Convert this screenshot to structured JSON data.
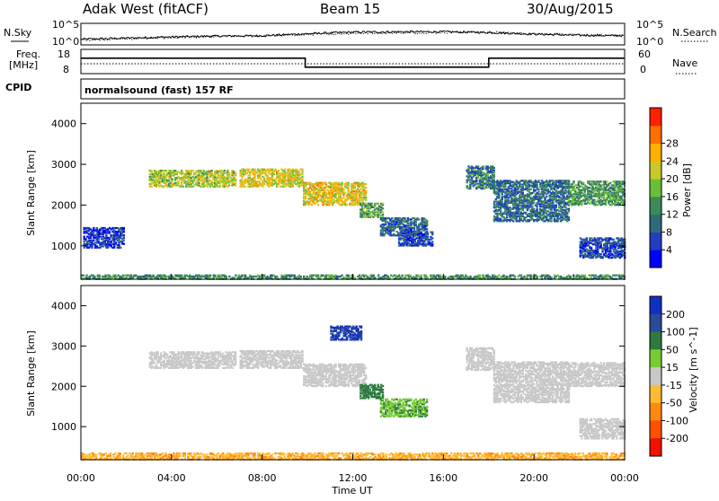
{
  "header": {
    "station": "Adak West (fitACF)",
    "beam": "Beam 15",
    "date": "30/Aug/2015"
  },
  "side_labels": {
    "nsky": "N.Sky",
    "nsky_ticks": [
      "10^5",
      "10^0"
    ],
    "freq": "Freq.",
    "freq_unit": "[MHz]",
    "freq_ticks": [
      "18",
      "8"
    ],
    "cpid": "CPID",
    "nsearch": "N.Search",
    "nsearch_ticks": [
      "10^5",
      "10^0"
    ],
    "nave": "Nave",
    "nave_ticks": [
      "60",
      "0"
    ]
  },
  "cpid_text": "normalsound (fast) 157 RF",
  "x_axis": {
    "label": "Time UT",
    "ticks": [
      "00:00",
      "04:00",
      "08:00",
      "12:00",
      "16:00",
      "20:00",
      "00:00"
    ]
  },
  "chart_data": [
    {
      "type": "line",
      "panel": "noise",
      "series": [
        {
          "name": "N.Sky",
          "x": [
            0,
            2,
            4,
            6,
            8,
            10,
            12,
            14,
            16,
            18,
            20,
            22,
            24
          ],
          "values": [
            1.2,
            1.5,
            1.8,
            2.0,
            2.1,
            2.6,
            3.0,
            3.1,
            3.1,
            2.9,
            2.5,
            2.2,
            2.1
          ]
        },
        {
          "name": "N.Search",
          "x": [
            0,
            2,
            4,
            6,
            8,
            10,
            12,
            14,
            16,
            18,
            20,
            22,
            24
          ],
          "values": [
            1.0,
            1.3,
            1.6,
            1.9,
            2.0,
            2.4,
            2.7,
            2.8,
            2.9,
            3.0,
            2.6,
            2.3,
            2.2
          ]
        }
      ],
      "ylim": [
        0,
        5
      ]
    },
    {
      "type": "line",
      "panel": "frequency-nave",
      "series": [
        {
          "name": "Freq.",
          "x": [
            0,
            9.9,
            9.9,
            18,
            18,
            24
          ],
          "values": [
            14.5,
            14.5,
            10.5,
            10.5,
            14.5,
            14.5
          ]
        },
        {
          "name": "Nave",
          "x": [
            0,
            24
          ],
          "values": [
            12,
            12
          ]
        }
      ],
      "ylim": [
        8,
        18
      ]
    },
    {
      "type": "heatmap",
      "panel": "power",
      "title": "",
      "xlabel": "",
      "ylabel": "Slant Range [km]",
      "xlim": [
        0,
        24
      ],
      "ylim": [
        180,
        4500
      ],
      "yticks": [
        1000,
        2000,
        3000,
        4000
      ],
      "colorbar": {
        "label": "Power [dB]",
        "ticks": [
          "4",
          "8",
          "12",
          "16",
          "20",
          "24",
          "28"
        ],
        "colors": [
          "#0000ff",
          "#1f3fbf",
          "#2e6a7a",
          "#3a8a5a",
          "#6abf3a",
          "#c9c92a",
          "#ffb000",
          "#ff7000",
          "#ff2000"
        ]
      },
      "regions": [
        {
          "t0": 3.0,
          "t1": 6.8,
          "r0": 2450,
          "r1": 2850,
          "value": 18
        },
        {
          "t0": 7.0,
          "t1": 9.8,
          "r0": 2450,
          "r1": 2900,
          "value": 20
        },
        {
          "t0": 9.8,
          "t1": 12.6,
          "r0": 2000,
          "r1": 2550,
          "value": 21
        },
        {
          "t0": 12.3,
          "t1": 13.3,
          "r0": 1700,
          "r1": 2050,
          "value": 14
        },
        {
          "t0": 13.2,
          "t1": 15.3,
          "r0": 1250,
          "r1": 1700,
          "value": 8
        },
        {
          "t0": 14.0,
          "t1": 15.5,
          "r0": 1000,
          "r1": 1350,
          "value": 6
        },
        {
          "t0": 17.0,
          "t1": 18.2,
          "r0": 2400,
          "r1": 2950,
          "value": 10
        },
        {
          "t0": 18.2,
          "t1": 21.5,
          "r0": 1600,
          "r1": 2600,
          "value": 9
        },
        {
          "t0": 21.5,
          "t1": 24.0,
          "r0": 2000,
          "r1": 2600,
          "value": 13
        },
        {
          "t0": 22.0,
          "t1": 24.0,
          "r0": 700,
          "r1": 1200,
          "value": 6
        },
        {
          "t0": 0.1,
          "t1": 1.9,
          "r0": 950,
          "r1": 1450,
          "value": 5
        },
        {
          "t0": 0.0,
          "t1": 24.0,
          "r0": 180,
          "r1": 300,
          "value": 12
        }
      ]
    },
    {
      "type": "heatmap",
      "panel": "velocity",
      "title": "",
      "xlabel": "Time UT",
      "ylabel": "Slant Range [km]",
      "xlim": [
        0,
        24
      ],
      "ylim": [
        180,
        4500
      ],
      "yticks": [
        1000,
        2000,
        3000,
        4000
      ],
      "colorbar": {
        "label": "Velocity [m s^-1]",
        "ticks": [
          "200",
          "100",
          "50",
          "15",
          "-15",
          "-50",
          "-100",
          "-200"
        ],
        "colors": [
          "#1030c0",
          "#2a4a9a",
          "#2e7a40",
          "#77cc33",
          "#c8c8c8",
          "#ffbb33",
          "#ff8a10",
          "#ff5000",
          "#ee1100"
        ]
      },
      "regions": [
        {
          "t0": 3.0,
          "t1": 6.8,
          "r0": 2450,
          "r1": 2850,
          "value": 0
        },
        {
          "t0": 7.0,
          "t1": 9.8,
          "r0": 2450,
          "r1": 2900,
          "value": 5
        },
        {
          "t0": 9.8,
          "t1": 12.6,
          "r0": 2000,
          "r1": 2550,
          "value": 0
        },
        {
          "t0": 12.3,
          "t1": 13.3,
          "r0": 1700,
          "r1": 2050,
          "value": 40
        },
        {
          "t0": 13.2,
          "t1": 15.3,
          "r0": 1250,
          "r1": 1700,
          "value": 30
        },
        {
          "t0": 17.0,
          "t1": 18.2,
          "r0": 2400,
          "r1": 2950,
          "value": 0
        },
        {
          "t0": 18.2,
          "t1": 21.5,
          "r0": 1600,
          "r1": 2600,
          "value": 0
        },
        {
          "t0": 21.5,
          "t1": 24.0,
          "r0": 2000,
          "r1": 2600,
          "value": 0
        },
        {
          "t0": 22.0,
          "t1": 24.0,
          "r0": 700,
          "r1": 1200,
          "value": 0
        },
        {
          "t0": 11.0,
          "t1": 12.4,
          "r0": 3150,
          "r1": 3500,
          "value": 150
        },
        {
          "t0": 0.0,
          "t1": 24.0,
          "r0": 180,
          "r1": 350,
          "value": -30
        }
      ]
    }
  ]
}
